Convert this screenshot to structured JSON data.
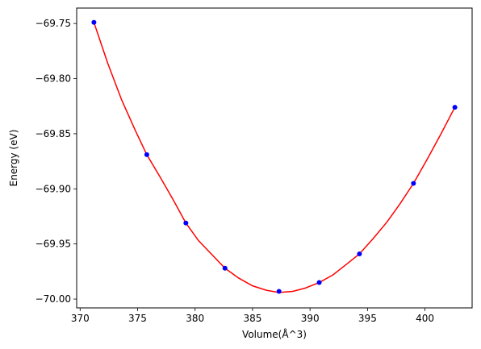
{
  "chart_data": {
    "type": "scatter",
    "title": "",
    "xlabel": "Volume(Å^3)",
    "ylabel": "Energy (eV)",
    "xlim": [
      369.7,
      404.1
    ],
    "ylim": [
      -70.008,
      -69.736
    ],
    "grid": false,
    "xticks": [
      {
        "value": 370,
        "label": "370"
      },
      {
        "value": 375,
        "label": "375"
      },
      {
        "value": 380,
        "label": "380"
      },
      {
        "value": 385,
        "label": "385"
      },
      {
        "value": 390,
        "label": "390"
      },
      {
        "value": 395,
        "label": "395"
      },
      {
        "value": 400,
        "label": "400"
      }
    ],
    "yticks": [
      {
        "value": -69.75,
        "label": "−69.75"
      },
      {
        "value": -69.8,
        "label": "−69.80"
      },
      {
        "value": -69.85,
        "label": "−69.85"
      },
      {
        "value": -69.9,
        "label": "−69.90"
      },
      {
        "value": -69.95,
        "label": "−69.95"
      },
      {
        "value": -70.0,
        "label": "−70.00"
      }
    ],
    "series": [
      {
        "kind": "points",
        "color": "#0000ff",
        "x": [
          371.2,
          375.8,
          379.2,
          382.6,
          387.3,
          390.8,
          394.3,
          399.0,
          402.6
        ],
        "y": [
          -69.749,
          -69.869,
          -69.931,
          -69.972,
          -69.993,
          -69.985,
          -69.959,
          -69.895,
          -69.826
        ]
      },
      {
        "kind": "fit-curve",
        "color": "#ff0000",
        "x": [
          371.2,
          372.4,
          373.6,
          374.8,
          375.8,
          377.0,
          378.1,
          379.2,
          380.3,
          381.5,
          382.6,
          383.8,
          385.0,
          386.2,
          387.3,
          388.5,
          389.6,
          390.8,
          392.0,
          393.1,
          394.3,
          395.5,
          396.7,
          397.8,
          399.0,
          400.2,
          401.4,
          402.6
        ],
        "y": [
          -69.749,
          -69.786,
          -69.819,
          -69.847,
          -69.869,
          -69.89,
          -69.91,
          -69.931,
          -69.947,
          -69.96,
          -69.972,
          -69.981,
          -69.988,
          -69.992,
          -69.994,
          -69.993,
          -69.99,
          -69.985,
          -69.978,
          -69.969,
          -69.959,
          -69.945,
          -69.93,
          -69.914,
          -69.895,
          -69.873,
          -69.85,
          -69.826
        ]
      }
    ]
  }
}
